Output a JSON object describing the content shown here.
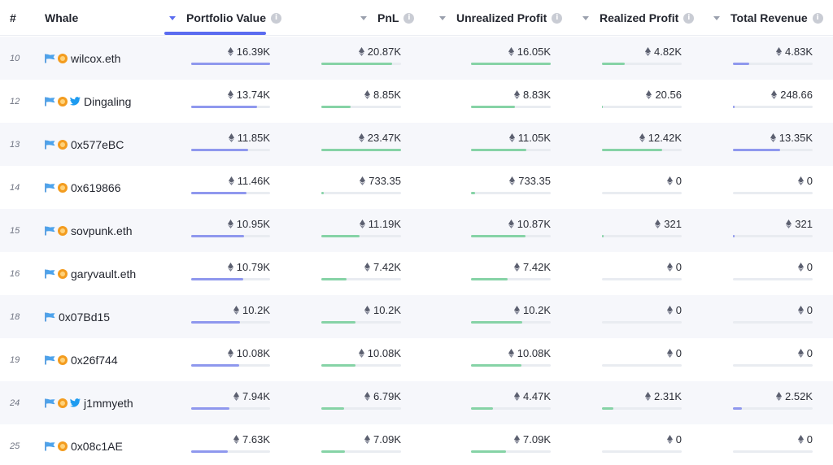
{
  "columns": {
    "rank": "#",
    "whale": "Whale",
    "portfolio": "Portfolio Value",
    "pnl": "PnL",
    "unrealized": "Unrealized Profit",
    "realized": "Realized Profit",
    "revenue": "Total Revenue"
  },
  "sort": {
    "column": "portfolio",
    "direction": "desc",
    "active_color": "#5b6cf0"
  },
  "colors": {
    "portfolio_bar": "#8f98ee",
    "other_bar": "#86d3a6",
    "track": "#e9ecf1",
    "alt_row": "#f6f7fb"
  },
  "rows": [
    {
      "rank": "10",
      "name": "wilcox.eth",
      "icons": [
        "flag-icon",
        "badge-icon"
      ],
      "portfolio": "16.39K",
      "pnl": "20.87K",
      "unrealized": "16.05K",
      "realized": "4.82K",
      "revenue": "4.83K",
      "bars": {
        "portfolio": 1.0,
        "pnl": 0.89,
        "unrealized": 1.0,
        "realized": 0.29,
        "revenue": 0.2
      }
    },
    {
      "rank": "12",
      "name": "Dingaling",
      "icons": [
        "flag-icon",
        "badge-icon",
        "twitter-icon"
      ],
      "portfolio": "13.74K",
      "pnl": "8.85K",
      "unrealized": "8.83K",
      "realized": "20.56",
      "revenue": "248.66",
      "bars": {
        "portfolio": 0.84,
        "pnl": 0.37,
        "unrealized": 0.55,
        "realized": 0.01,
        "revenue": 0.02
      }
    },
    {
      "rank": "13",
      "name": "0x577eBC",
      "icons": [
        "flag-icon",
        "badge-icon"
      ],
      "portfolio": "11.85K",
      "pnl": "23.47K",
      "unrealized": "11.05K",
      "realized": "12.42K",
      "revenue": "13.35K",
      "bars": {
        "portfolio": 0.72,
        "pnl": 1.0,
        "unrealized": 0.69,
        "realized": 0.75,
        "revenue": 0.59
      }
    },
    {
      "rank": "14",
      "name": "0x619866",
      "icons": [
        "flag-icon",
        "badge-icon"
      ],
      "portfolio": "11.46K",
      "pnl": "733.35",
      "unrealized": "733.35",
      "realized": "0",
      "revenue": "0",
      "bars": {
        "portfolio": 0.7,
        "pnl": 0.03,
        "unrealized": 0.05,
        "realized": 0,
        "revenue": 0
      }
    },
    {
      "rank": "15",
      "name": "sovpunk.eth",
      "icons": [
        "flag-icon",
        "badge-icon"
      ],
      "portfolio": "10.95K",
      "pnl": "11.19K",
      "unrealized": "10.87K",
      "realized": "321",
      "revenue": "321",
      "bars": {
        "portfolio": 0.67,
        "pnl": 0.48,
        "unrealized": 0.68,
        "realized": 0.02,
        "revenue": 0.02
      }
    },
    {
      "rank": "16",
      "name": "garyvault.eth",
      "icons": [
        "flag-icon",
        "badge-icon"
      ],
      "portfolio": "10.79K",
      "pnl": "7.42K",
      "unrealized": "7.42K",
      "realized": "0",
      "revenue": "0",
      "bars": {
        "portfolio": 0.66,
        "pnl": 0.32,
        "unrealized": 0.46,
        "realized": 0,
        "revenue": 0
      }
    },
    {
      "rank": "18",
      "name": "0x07Bd15",
      "icons": [
        "flag-icon"
      ],
      "portfolio": "10.2K",
      "pnl": "10.2K",
      "unrealized": "10.2K",
      "realized": "0",
      "revenue": "0",
      "bars": {
        "portfolio": 0.62,
        "pnl": 0.43,
        "unrealized": 0.64,
        "realized": 0,
        "revenue": 0
      }
    },
    {
      "rank": "19",
      "name": "0x26f744",
      "icons": [
        "flag-icon",
        "badge-icon"
      ],
      "portfolio": "10.08K",
      "pnl": "10.08K",
      "unrealized": "10.08K",
      "realized": "0",
      "revenue": "0",
      "bars": {
        "portfolio": 0.61,
        "pnl": 0.43,
        "unrealized": 0.63,
        "realized": 0,
        "revenue": 0
      }
    },
    {
      "rank": "24",
      "name": "j1mmyeth",
      "icons": [
        "flag-icon",
        "badge-icon",
        "twitter-icon"
      ],
      "portfolio": "7.94K",
      "pnl": "6.79K",
      "unrealized": "4.47K",
      "realized": "2.31K",
      "revenue": "2.52K",
      "bars": {
        "portfolio": 0.48,
        "pnl": 0.29,
        "unrealized": 0.28,
        "realized": 0.14,
        "revenue": 0.11
      }
    },
    {
      "rank": "25",
      "name": "0x08c1AE",
      "icons": [
        "flag-icon",
        "badge-icon"
      ],
      "portfolio": "7.63K",
      "pnl": "7.09K",
      "unrealized": "7.09K",
      "realized": "0",
      "revenue": "0",
      "bars": {
        "portfolio": 0.46,
        "pnl": 0.3,
        "unrealized": 0.44,
        "realized": 0,
        "revenue": 0
      }
    }
  ]
}
